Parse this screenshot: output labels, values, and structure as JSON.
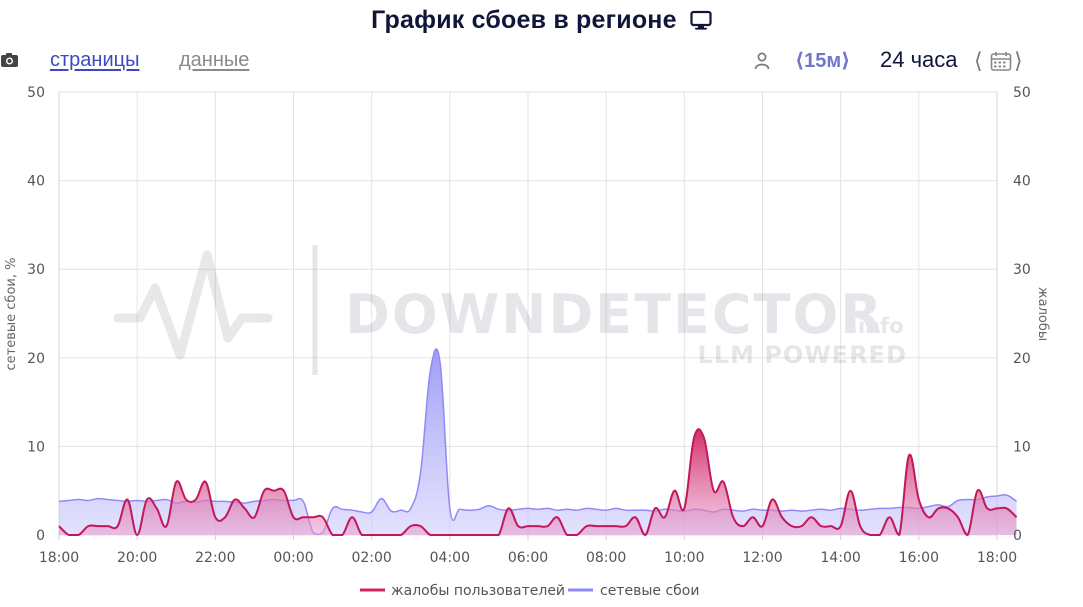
{
  "header": {
    "title": "График сбоев в регионе",
    "icon": "monitor-icon"
  },
  "toolbar": {
    "camera_icon": "camera-icon",
    "tab_pages": "страницы",
    "tab_data": "данные",
    "user_icon": "user-icon",
    "interval": "⟨15м⟩",
    "range": "24 часа",
    "prev": "⟨",
    "next": "⟩",
    "calendar_icon": "calendar-icon"
  },
  "watermark": {
    "brand": "DOWNDETECTOR",
    "suffix": ".info",
    "tagline": "LLM POWERED"
  },
  "colors": {
    "reports": "#d0245f",
    "outages": "#8f8af5",
    "grid": "#e2e2e2",
    "axis_text": "#555555"
  },
  "chart_data": {
    "type": "area",
    "xlabel": "",
    "ylabel_left": "сетевые сбои, %",
    "ylabel_right": "жалобы",
    "ylim": [
      0,
      50
    ],
    "yticks": [
      0,
      10,
      20,
      30,
      40,
      50
    ],
    "xlim_hours": [
      18,
      42
    ],
    "xtick_labels": [
      "18:00",
      "20:00",
      "22:00",
      "00:00",
      "02:00",
      "04:00",
      "06:00",
      "08:00",
      "10:00",
      "12:00",
      "14:00",
      "16:00",
      "18:00"
    ],
    "grid": true,
    "legend_position": "bottom",
    "series": [
      {
        "name": "жалобы пользователей",
        "color": "#d0245f",
        "points": [
          [
            18.0,
            1
          ],
          [
            18.25,
            0
          ],
          [
            18.5,
            0
          ],
          [
            18.75,
            1
          ],
          [
            19.0,
            1
          ],
          [
            19.25,
            1
          ],
          [
            19.5,
            1
          ],
          [
            19.75,
            4
          ],
          [
            20.0,
            0
          ],
          [
            20.25,
            4
          ],
          [
            20.5,
            3
          ],
          [
            20.75,
            1
          ],
          [
            21.0,
            6
          ],
          [
            21.25,
            4
          ],
          [
            21.5,
            4
          ],
          [
            21.75,
            6
          ],
          [
            22.0,
            2
          ],
          [
            22.25,
            2
          ],
          [
            22.5,
            4
          ],
          [
            22.75,
            3
          ],
          [
            23.0,
            2
          ],
          [
            23.25,
            5
          ],
          [
            23.5,
            5
          ],
          [
            23.75,
            5
          ],
          [
            24.0,
            2
          ],
          [
            24.25,
            2
          ],
          [
            24.5,
            2
          ],
          [
            24.75,
            2
          ],
          [
            25.0,
            0
          ],
          [
            25.25,
            0
          ],
          [
            25.5,
            2
          ],
          [
            25.75,
            0
          ],
          [
            26.0,
            0
          ],
          [
            26.25,
            0
          ],
          [
            26.5,
            0
          ],
          [
            26.75,
            0
          ],
          [
            27.0,
            1
          ],
          [
            27.25,
            1
          ],
          [
            27.5,
            0
          ],
          [
            27.75,
            0
          ],
          [
            28.0,
            0
          ],
          [
            28.25,
            0
          ],
          [
            28.5,
            0
          ],
          [
            28.75,
            0
          ],
          [
            29.0,
            0
          ],
          [
            29.25,
            0
          ],
          [
            29.5,
            3
          ],
          [
            29.75,
            1
          ],
          [
            30.0,
            1
          ],
          [
            30.25,
            1
          ],
          [
            30.5,
            1
          ],
          [
            30.75,
            2
          ],
          [
            31.0,
            0
          ],
          [
            31.25,
            0
          ],
          [
            31.5,
            1
          ],
          [
            31.75,
            1
          ],
          [
            32.0,
            1
          ],
          [
            32.25,
            1
          ],
          [
            32.5,
            1
          ],
          [
            32.75,
            2
          ],
          [
            33.0,
            0
          ],
          [
            33.25,
            3
          ],
          [
            33.5,
            2
          ],
          [
            33.75,
            5
          ],
          [
            34.0,
            3
          ],
          [
            34.25,
            11
          ],
          [
            34.5,
            11
          ],
          [
            34.75,
            5
          ],
          [
            35.0,
            6
          ],
          [
            35.25,
            2
          ],
          [
            35.5,
            1
          ],
          [
            35.75,
            2
          ],
          [
            36.0,
            1
          ],
          [
            36.25,
            4
          ],
          [
            36.5,
            2
          ],
          [
            36.75,
            1
          ],
          [
            37.0,
            1
          ],
          [
            37.25,
            2
          ],
          [
            37.5,
            1
          ],
          [
            37.75,
            1
          ],
          [
            38.0,
            1
          ],
          [
            38.25,
            5
          ],
          [
            38.5,
            1
          ],
          [
            38.75,
            0
          ],
          [
            39.0,
            0
          ],
          [
            39.25,
            2
          ],
          [
            39.5,
            0
          ],
          [
            39.75,
            9
          ],
          [
            40.0,
            4
          ],
          [
            40.25,
            2
          ],
          [
            40.5,
            3
          ],
          [
            40.75,
            3
          ],
          [
            41.0,
            2
          ],
          [
            41.25,
            0
          ],
          [
            41.5,
            5
          ],
          [
            41.75,
            3
          ],
          [
            42.0,
            3
          ],
          [
            42.25,
            3
          ],
          [
            42.5,
            2
          ]
        ]
      },
      {
        "name": "сетевые сбои",
        "color": "#8f8af5",
        "points": [
          [
            18.0,
            3.8
          ],
          [
            18.25,
            3.9
          ],
          [
            18.5,
            4.0
          ],
          [
            18.75,
            3.9
          ],
          [
            19.0,
            4.1
          ],
          [
            19.25,
            4.0
          ],
          [
            19.5,
            3.9
          ],
          [
            19.75,
            3.8
          ],
          [
            20.0,
            3.9
          ],
          [
            20.25,
            3.8
          ],
          [
            20.5,
            3.9
          ],
          [
            20.75,
            4.0
          ],
          [
            21.0,
            3.6
          ],
          [
            21.25,
            3.8
          ],
          [
            21.5,
            3.7
          ],
          [
            21.75,
            3.9
          ],
          [
            22.0,
            3.8
          ],
          [
            22.25,
            3.8
          ],
          [
            22.5,
            3.7
          ],
          [
            22.75,
            3.6
          ],
          [
            23.0,
            3.8
          ],
          [
            23.25,
            3.9
          ],
          [
            23.5,
            4.0
          ],
          [
            23.75,
            3.9
          ],
          [
            24.0,
            3.9
          ],
          [
            24.25,
            3.8
          ],
          [
            24.5,
            0.3
          ],
          [
            24.75,
            0.3
          ],
          [
            25.0,
            3.0
          ],
          [
            25.25,
            2.9
          ],
          [
            25.5,
            2.8
          ],
          [
            25.75,
            2.6
          ],
          [
            26.0,
            2.6
          ],
          [
            26.25,
            4.1
          ],
          [
            26.5,
            2.7
          ],
          [
            26.75,
            2.8
          ],
          [
            27.0,
            3.0
          ],
          [
            27.25,
            7.0
          ],
          [
            27.5,
            18.5
          ],
          [
            27.75,
            19.5
          ],
          [
            28.0,
            3.0
          ],
          [
            28.25,
            2.9
          ],
          [
            28.5,
            2.8
          ],
          [
            28.75,
            2.9
          ],
          [
            29.0,
            3.3
          ],
          [
            29.25,
            2.9
          ],
          [
            29.5,
            2.8
          ],
          [
            29.75,
            2.9
          ],
          [
            30.0,
            3.0
          ],
          [
            30.25,
            2.9
          ],
          [
            30.5,
            3.0
          ],
          [
            30.75,
            2.8
          ],
          [
            31.0,
            2.9
          ],
          [
            31.25,
            2.8
          ],
          [
            31.5,
            3.0
          ],
          [
            31.75,
            2.9
          ],
          [
            32.0,
            2.8
          ],
          [
            32.25,
            3.0
          ],
          [
            32.5,
            2.8
          ],
          [
            32.75,
            2.8
          ],
          [
            33.0,
            2.8
          ],
          [
            33.25,
            2.7
          ],
          [
            33.5,
            2.9
          ],
          [
            33.75,
            2.8
          ],
          [
            34.0,
            2.7
          ],
          [
            34.25,
            2.9
          ],
          [
            34.5,
            2.8
          ],
          [
            34.75,
            2.6
          ],
          [
            35.0,
            2.9
          ],
          [
            35.25,
            2.8
          ],
          [
            35.5,
            2.7
          ],
          [
            35.75,
            2.9
          ],
          [
            36.0,
            2.8
          ],
          [
            36.25,
            2.8
          ],
          [
            36.5,
            2.7
          ],
          [
            36.75,
            2.8
          ],
          [
            37.0,
            2.7
          ],
          [
            37.25,
            2.8
          ],
          [
            37.5,
            2.9
          ],
          [
            37.75,
            2.8
          ],
          [
            38.0,
            3.0
          ],
          [
            38.25,
            2.9
          ],
          [
            38.5,
            2.8
          ],
          [
            38.75,
            2.9
          ],
          [
            39.0,
            3.0
          ],
          [
            39.25,
            3.0
          ],
          [
            39.5,
            3.1
          ],
          [
            39.75,
            3.1
          ],
          [
            40.0,
            3.0
          ],
          [
            40.25,
            3.2
          ],
          [
            40.5,
            3.4
          ],
          [
            40.75,
            3.2
          ],
          [
            41.0,
            3.9
          ],
          [
            41.25,
            4.0
          ],
          [
            41.5,
            4.0
          ],
          [
            41.75,
            4.3
          ],
          [
            42.0,
            4.4
          ],
          [
            42.25,
            4.5
          ],
          [
            42.5,
            3.8
          ]
        ]
      }
    ]
  }
}
